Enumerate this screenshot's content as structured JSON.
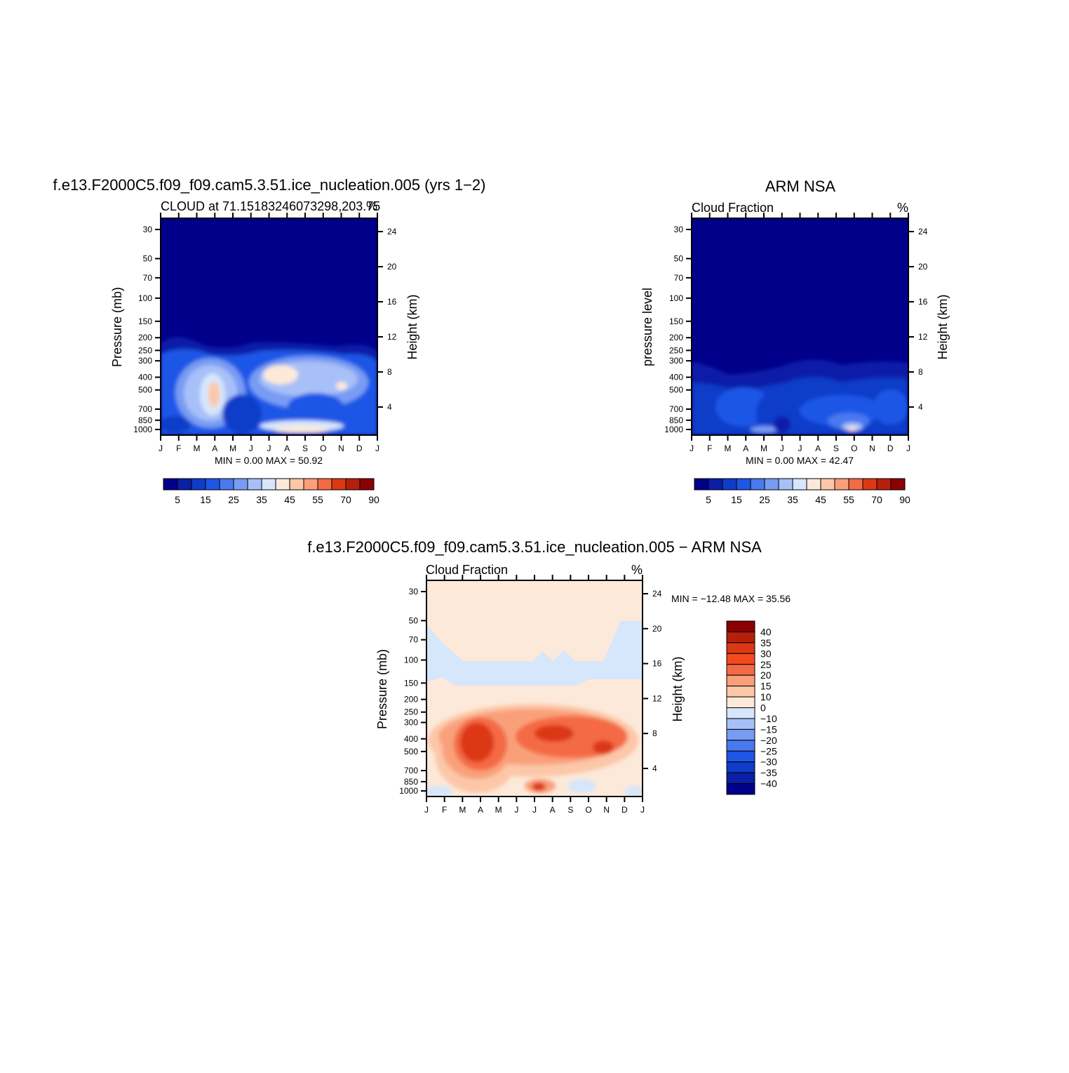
{
  "figure": {
    "panels": [
      {
        "main_title": "f.e13.F2000C5.f09_f09.cam5.3.51.ice_nucleation.005 (yrs 1−2)",
        "left_label": "CLOUD at 71.15183246073298,203.75",
        "right_label": "%",
        "ylabel_left": "Pressure (mb)",
        "ylabel_right": "Height (km)",
        "min_max_text": "MIN =     0.00  MAX =    50.92"
      },
      {
        "main_title": "ARM NSA",
        "left_label": "Cloud Fraction",
        "right_label": "%",
        "ylabel_left": "pressure level",
        "ylabel_right": "Height (km)",
        "min_max_text": "MIN =     0.00  MAX =    42.47"
      },
      {
        "main_title": "f.e13.F2000C5.f09_f09.cam5.3.51.ice_nucleation.005 − ARM NSA",
        "left_label": "Cloud Fraction",
        "right_label": "%",
        "ylabel_left": "Pressure (mb)",
        "ylabel_right": "Height (km)",
        "min_max_text": "MIN = −12.48  MAX =    35.56"
      }
    ]
  },
  "chart_data": [
    {
      "type": "heatmap",
      "title": "f.e13.F2000C5.f09_f09.cam5.3.51.ice_nucleation.005 (yrs 1−2)",
      "subtitle": "CLOUD at 71.15183246073298,203.75",
      "units": "%",
      "x_ticks": [
        "J",
        "F",
        "M",
        "A",
        "M",
        "J",
        "J",
        "A",
        "S",
        "O",
        "N",
        "D",
        "J"
      ],
      "y_ticks_pressure": [
        30,
        50,
        70,
        100,
        150,
        200,
        250,
        300,
        400,
        500,
        700,
        850,
        1000
      ],
      "y_ticks_height_km": [
        24,
        20,
        16,
        12,
        8,
        4
      ],
      "colorbar": {
        "labels": [
          "5",
          "15",
          "25",
          "35",
          "45",
          "55",
          "70",
          "90"
        ],
        "colors": [
          "#00008b",
          "#0a1ea8",
          "#0f3cc9",
          "#1e56e6",
          "#4a78f0",
          "#789cf4",
          "#a8c0f8",
          "#d6e6fb",
          "#fde9d9",
          "#fcc7a8",
          "#f9a07a",
          "#f46a45",
          "#dc3815",
          "#b5200a",
          "#8b0000"
        ]
      },
      "min": 0.0,
      "max": 50.92
    },
    {
      "type": "heatmap",
      "title": "ARM NSA",
      "subtitle": "Cloud Fraction",
      "units": "%",
      "x_ticks": [
        "J",
        "F",
        "M",
        "A",
        "M",
        "J",
        "J",
        "A",
        "S",
        "O",
        "N",
        "D",
        "J"
      ],
      "y_ticks_pressure": [
        30,
        50,
        70,
        100,
        150,
        200,
        250,
        300,
        400,
        500,
        700,
        850,
        1000
      ],
      "y_ticks_height_km": [
        24,
        20,
        16,
        12,
        8,
        4
      ],
      "colorbar": {
        "labels": [
          "5",
          "15",
          "25",
          "35",
          "45",
          "55",
          "70",
          "90"
        ],
        "colors": [
          "#00008b",
          "#0a1ea8",
          "#0f3cc9",
          "#1e56e6",
          "#4a78f0",
          "#789cf4",
          "#a8c0f8",
          "#d6e6fb",
          "#fde9d9",
          "#fcc7a8",
          "#f9a07a",
          "#f46a45",
          "#dc3815",
          "#b5200a",
          "#8b0000"
        ]
      },
      "min": 0.0,
      "max": 42.47
    },
    {
      "type": "heatmap",
      "title": "f.e13.F2000C5.f09_f09.cam5.3.51.ice_nucleation.005 − ARM NSA",
      "subtitle": "Cloud Fraction",
      "units": "%",
      "x_ticks": [
        "J",
        "F",
        "M",
        "A",
        "M",
        "J",
        "J",
        "A",
        "S",
        "O",
        "N",
        "D",
        "J"
      ],
      "y_ticks_pressure": [
        30,
        50,
        70,
        100,
        150,
        200,
        250,
        300,
        400,
        500,
        700,
        850,
        1000
      ],
      "y_ticks_height_km": [
        24,
        20,
        16,
        12,
        8,
        4
      ],
      "colorbar": {
        "labels": [
          "40",
          "35",
          "30",
          "25",
          "20",
          "15",
          "10",
          "0",
          "−10",
          "−15",
          "−20",
          "−25",
          "−30",
          "−35",
          "−40"
        ],
        "colors": [
          "#8b0000",
          "#b5200a",
          "#dc3815",
          "#f44a1e",
          "#f46a45",
          "#f9a07a",
          "#fcc7a8",
          "#fde9d9",
          "#d6e6fb",
          "#a8c0f8",
          "#789cf4",
          "#4a78f0",
          "#1e56e6",
          "#0f3cc9",
          "#0a1ea8",
          "#00008b"
        ]
      },
      "min": -12.48,
      "max": 35.56
    }
  ]
}
